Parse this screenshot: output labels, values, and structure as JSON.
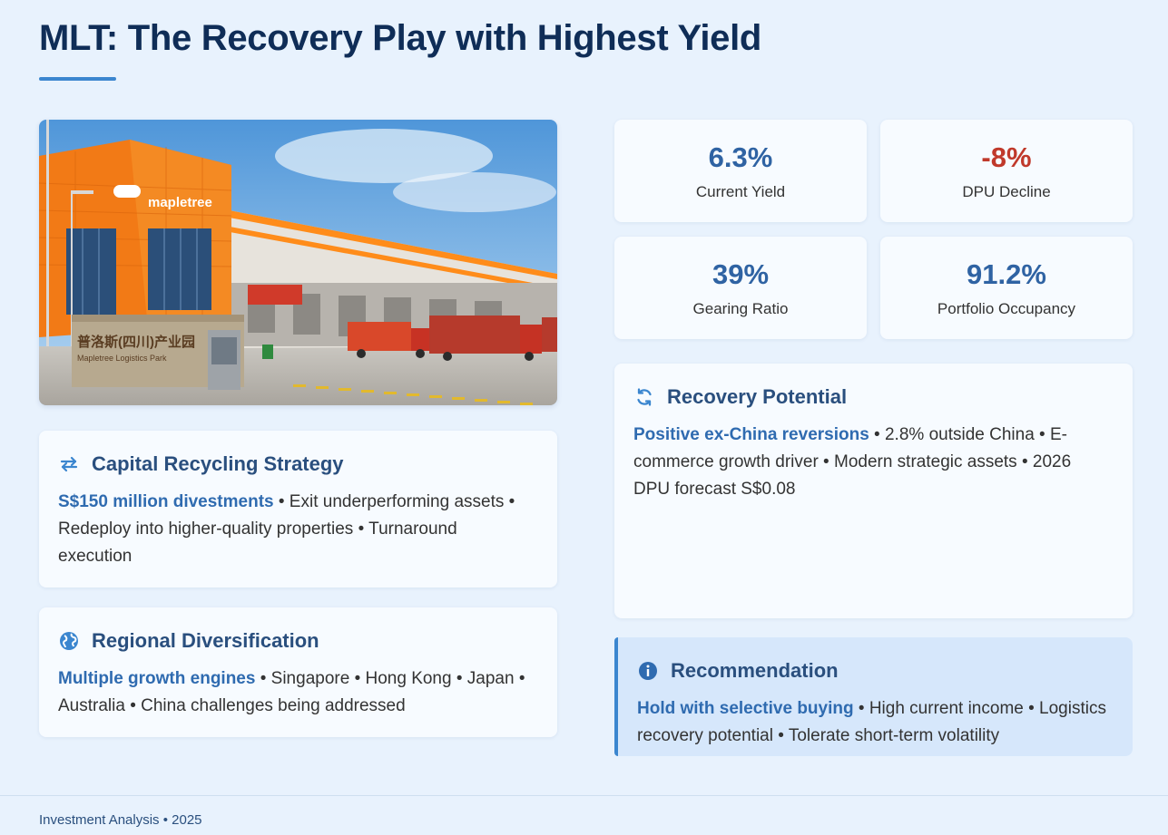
{
  "title": "MLT: The Recovery Play with Highest Yield",
  "photo": {
    "brand_sign": "mapletree",
    "wall_sign": "普洛斯(四川)产业园",
    "wall_sub": "Mapletree Logistics Park"
  },
  "stats": [
    {
      "value": "6.3%",
      "label": "Current Yield",
      "color": "#2f63a3"
    },
    {
      "value": "-8%",
      "label": "DPU Decline",
      "color": "#c0392b"
    },
    {
      "value": "39%",
      "label": "Gearing Ratio",
      "color": "#2f63a3"
    },
    {
      "value": "91.2%",
      "label": "Portfolio Occupancy",
      "color": "#2f63a3"
    }
  ],
  "capital": {
    "icon": "arrows-swap-icon",
    "title": "Capital Recycling Strategy",
    "highlight": "S$150 million divestments",
    "text": " • Exit underperforming assets • Redeploy into higher-quality properties • Turnaround execution"
  },
  "regional": {
    "icon": "globe-icon",
    "title": "Regional Diversification",
    "highlight": "Multiple growth engines",
    "text": " • Singapore • Hong Kong • Japan • Australia • China challenges being addressed"
  },
  "recovery": {
    "icon": "refresh-icon",
    "title": "Recovery Potential",
    "highlight": "Positive ex-China reversions",
    "text": " • 2.8% outside China • E-commerce growth driver • Modern strategic assets • 2026 DPU forecast S$0.08"
  },
  "recommendation": {
    "icon": "info-icon",
    "title": "Recommendation",
    "highlight": "Hold with selective buying",
    "text": " • High current income • Logistics recovery potential • Tolerate short-term volatility"
  },
  "footer": "Investment Analysis • 2025",
  "colors": {
    "background": "#e8f2fd",
    "title": "#0f2d57",
    "accent": "#3b86cf",
    "positive": "#2f63a3",
    "negative": "#c0392b"
  }
}
